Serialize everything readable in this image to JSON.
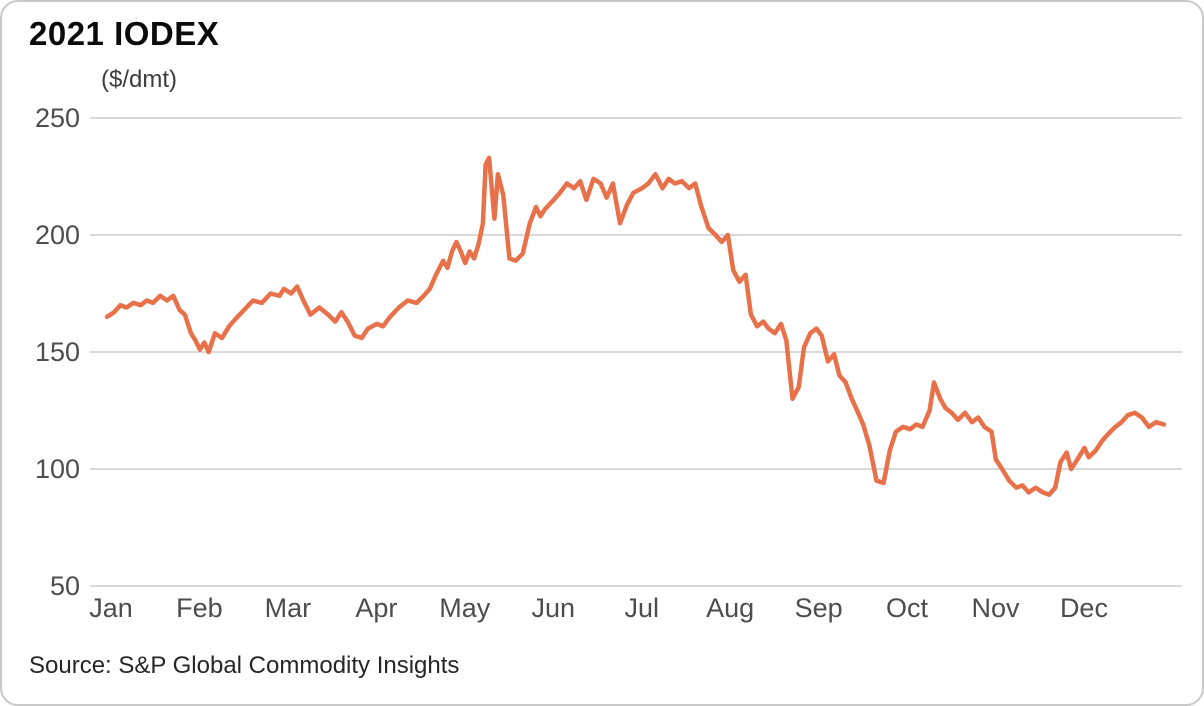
{
  "colors": {
    "line": "#e8714a",
    "grid": "#d9d9d9",
    "axis_text": "#4d4d4d",
    "title_text": "#0b0b0b",
    "source_text": "#262626"
  },
  "source_note": "Source: S&P Global Commodity Insights",
  "chart_data": {
    "type": "line",
    "title": "2021 IODEX",
    "ylabel": "($/dmt)",
    "xlabel": "",
    "ylim": [
      50,
      250
    ],
    "y_ticks": [
      250,
      200,
      150,
      100,
      50
    ],
    "x_tick_labels": [
      "Jan",
      "Feb",
      "Mar",
      "Apr",
      "May",
      "Jun",
      "Jul",
      "Aug",
      "Sep",
      "Oct",
      "Nov",
      "Dec"
    ],
    "x_unit": "months since start of Jan 2021 (1.0 = one month)",
    "grid": "horizontal",
    "legend": "none",
    "x": [
      0,
      0.08,
      0.15,
      0.22,
      0.3,
      0.38,
      0.45,
      0.52,
      0.6,
      0.68,
      0.75,
      0.82,
      0.88,
      0.95,
      1,
      1.05,
      1.1,
      1.15,
      1.22,
      1.3,
      1.38,
      1.45,
      1.55,
      1.65,
      1.75,
      1.85,
      1.95,
      2,
      2.08,
      2.15,
      2.22,
      2.3,
      2.4,
      2.5,
      2.58,
      2.65,
      2.72,
      2.8,
      2.88,
      2.95,
      3.05,
      3.12,
      3.2,
      3.3,
      3.4,
      3.5,
      3.58,
      3.65,
      3.72,
      3.8,
      3.85,
      3.9,
      3.95,
      4,
      4.05,
      4.1,
      4.15,
      4.2,
      4.25,
      4.28,
      4.32,
      4.38,
      4.42,
      4.48,
      4.55,
      4.62,
      4.7,
      4.78,
      4.85,
      4.9,
      4.95,
      5.05,
      5.12,
      5.2,
      5.28,
      5.35,
      5.42,
      5.5,
      5.58,
      5.65,
      5.72,
      5.8,
      5.88,
      5.95,
      6.05,
      6.12,
      6.2,
      6.28,
      6.35,
      6.42,
      6.5,
      6.58,
      6.65,
      6.72,
      6.8,
      6.88,
      6.95,
      7.02,
      7.08,
      7.15,
      7.22,
      7.28,
      7.35,
      7.42,
      7.48,
      7.55,
      7.62,
      7.68,
      7.75,
      7.82,
      7.88,
      7.95,
      8.02,
      8.08,
      8.15,
      8.22,
      8.28,
      8.35,
      8.42,
      8.48,
      8.55,
      8.62,
      8.7,
      8.78,
      8.85,
      8.92,
      9,
      9.08,
      9.15,
      9.22,
      9.3,
      9.35,
      9.42,
      9.48,
      9.55,
      9.62,
      9.7,
      9.78,
      9.85,
      9.92,
      10,
      10.05,
      10.12,
      10.2,
      10.28,
      10.35,
      10.42,
      10.5,
      10.58,
      10.65,
      10.72,
      10.78,
      10.85,
      10.9,
      10.97,
      11.05,
      11.1,
      11.18,
      11.25,
      11.32,
      11.4,
      11.47,
      11.54,
      11.62,
      11.7,
      11.78,
      11.86,
      11.95
    ],
    "values": [
      165,
      167,
      170,
      169,
      171,
      170,
      172,
      171,
      174,
      172,
      174,
      168,
      166,
      158,
      155,
      151,
      154,
      150,
      158,
      156,
      161,
      164,
      168,
      172,
      171,
      175,
      174,
      177,
      175,
      178,
      172,
      166,
      169,
      166,
      163,
      167,
      163,
      157,
      156,
      160,
      162,
      161,
      165,
      169,
      172,
      171,
      174,
      177,
      183,
      189,
      186,
      193,
      197,
      193,
      188,
      193,
      190,
      196,
      205,
      230,
      233,
      207,
      226,
      217,
      190,
      189,
      192,
      205,
      212,
      208,
      211,
      215,
      218,
      222,
      220,
      223,
      215,
      224,
      222,
      216,
      222,
      205,
      213,
      218,
      220,
      222,
      226,
      220,
      224,
      222,
      223,
      220,
      222,
      212,
      203,
      200,
      197,
      200,
      185,
      180,
      183,
      166,
      161,
      163,
      160,
      158,
      162,
      155,
      130,
      135,
      152,
      158,
      160,
      157,
      146,
      149,
      140,
      137,
      130,
      125,
      119,
      110,
      95,
      94,
      108,
      116,
      118,
      117,
      119,
      118,
      125,
      137,
      130,
      126,
      124,
      121,
      124,
      120,
      122,
      118,
      116,
      104,
      100,
      95,
      92,
      93,
      90,
      92,
      90,
      89,
      92,
      103,
      107,
      100,
      104,
      109,
      105,
      108,
      112,
      115,
      118,
      120,
      123,
      124,
      122,
      118,
      120,
      119
    ]
  }
}
